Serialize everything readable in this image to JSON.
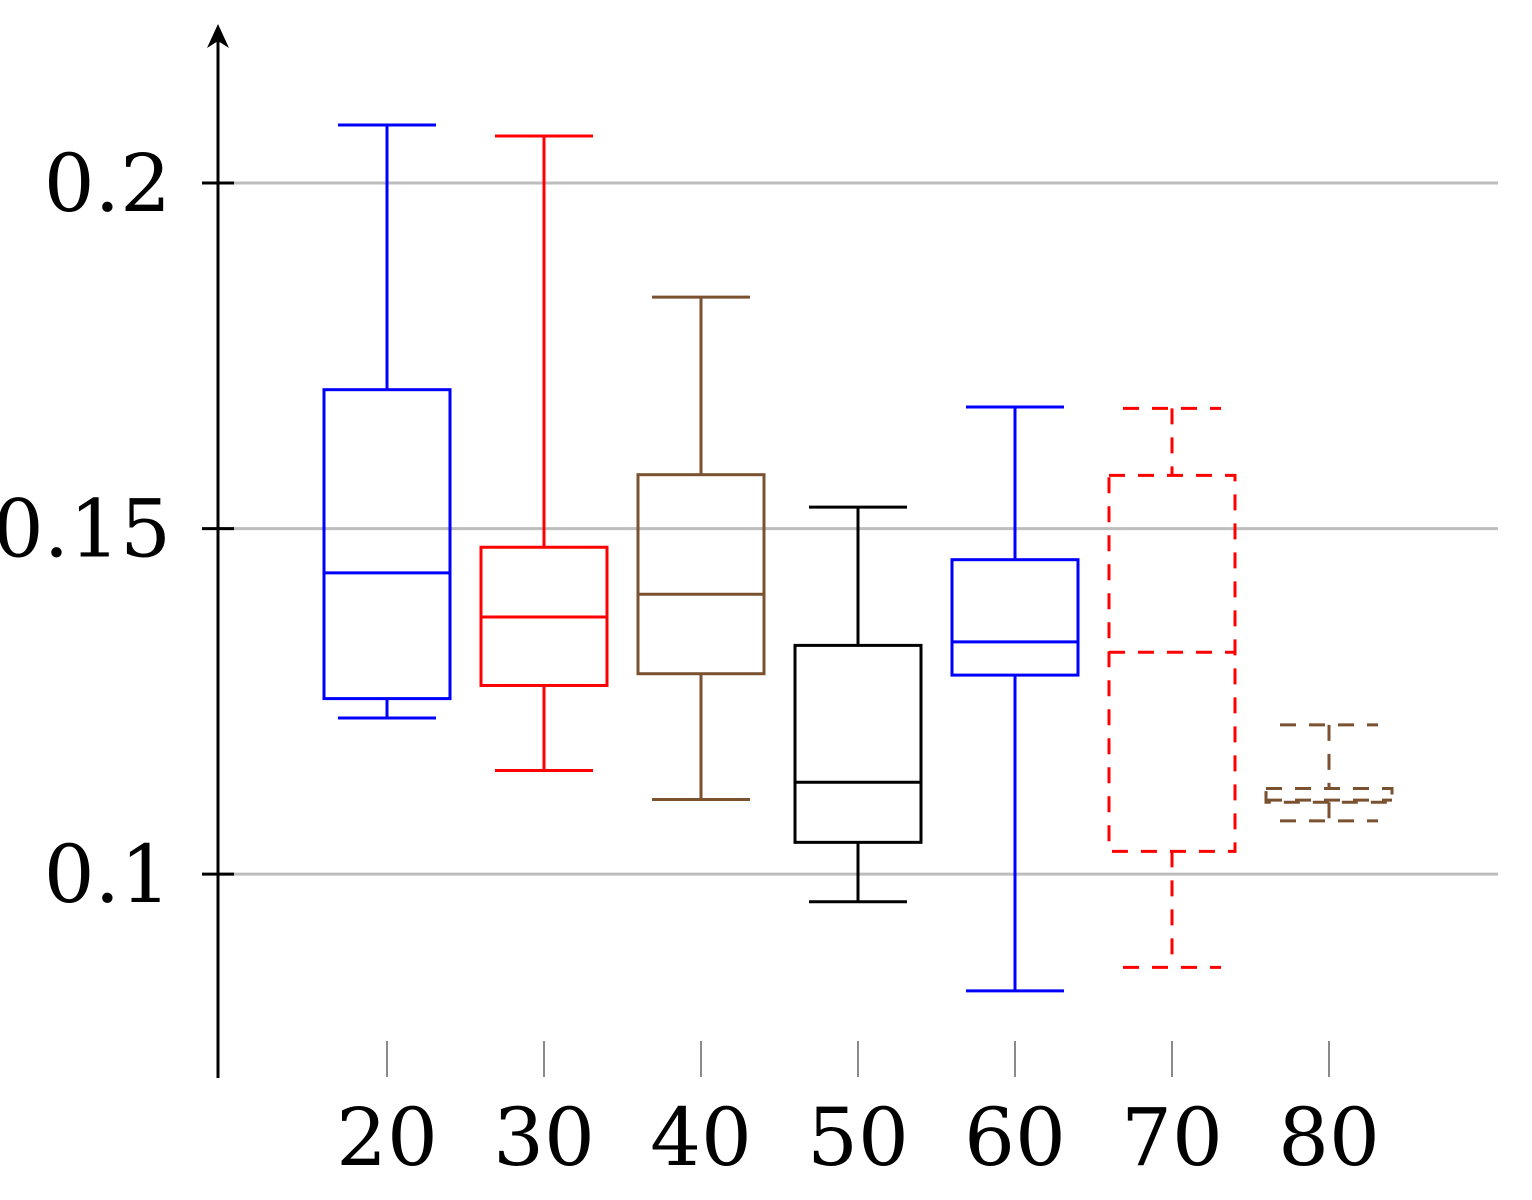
{
  "chart_data": {
    "type": "boxplot",
    "title": "",
    "xlabel": "",
    "ylabel": "",
    "categories": [
      "20",
      "30",
      "40",
      "50",
      "60",
      "70",
      "80"
    ],
    "y_ticks": [
      "0.1",
      "0.15",
      "0.2"
    ],
    "y_tick_values": [
      0.1,
      0.15,
      0.2
    ],
    "ylim": [
      0.0705,
      0.2207
    ],
    "grid": true,
    "boxes": [
      {
        "label": "20",
        "color": "#0000ff",
        "dashed": false,
        "whisker_low": 0.1226,
        "q1": 0.1254,
        "median": 0.1436,
        "q3": 0.1701,
        "whisker_high": 0.2084
      },
      {
        "label": "30",
        "color": "#ff0000",
        "dashed": false,
        "whisker_low": 0.115,
        "q1": 0.1273,
        "median": 0.1372,
        "q3": 0.1473,
        "whisker_high": 0.2068
      },
      {
        "label": "40",
        "color": "#7a5230",
        "dashed": false,
        "whisker_low": 0.1108,
        "q1": 0.129,
        "median": 0.1405,
        "q3": 0.1578,
        "whisker_high": 0.1835
      },
      {
        "label": "50",
        "color": "#000000",
        "dashed": false,
        "whisker_low": 0.096,
        "q1": 0.1046,
        "median": 0.1133,
        "q3": 0.1331,
        "whisker_high": 0.1531
      },
      {
        "label": "60",
        "color": "#0000ff",
        "dashed": false,
        "whisker_low": 0.0831,
        "q1": 0.1288,
        "median": 0.1336,
        "q3": 0.1455,
        "whisker_high": 0.1676
      },
      {
        "label": "70",
        "color": "#ff0000",
        "dashed": true,
        "whisker_low": 0.0865,
        "q1": 0.1033,
        "median": 0.1321,
        "q3": 0.1577,
        "whisker_high": 0.1674
      },
      {
        "label": "80",
        "color": "#7a5230",
        "dashed": true,
        "whisker_low": 0.1077,
        "q1": 0.1104,
        "median": 0.1107,
        "q3": 0.1124,
        "whisker_high": 0.1216
      }
    ]
  }
}
